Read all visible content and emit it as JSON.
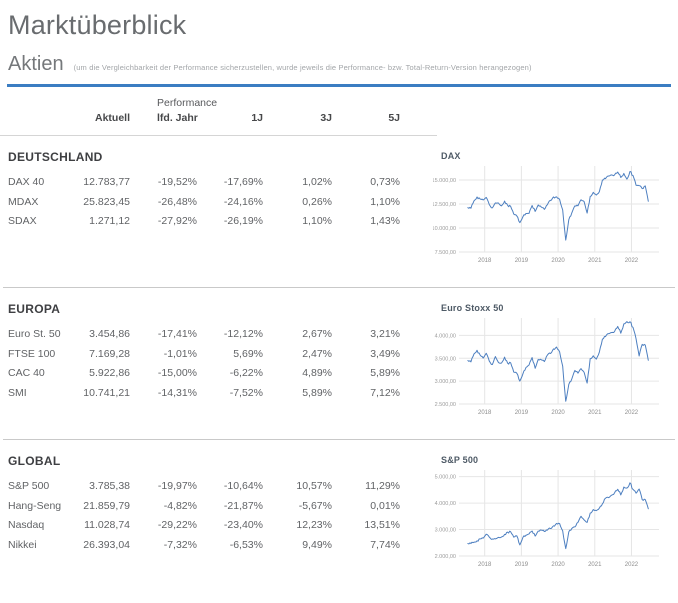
{
  "page": {
    "title": "Marktüberblick",
    "section_title": "Aktien",
    "section_note": "(um die Vergleichbarkeit der Performance sicherzustellen, wurde jeweils die Performance- bzw. Total-Return-Version herangezogen)"
  },
  "colors": {
    "accent_blue": "#3b7dc2",
    "chart_line": "#4d7fc0",
    "grid": "#e6e6e6",
    "divider": "#c9c9c9"
  },
  "table": {
    "header": {
      "group_label": "Performance",
      "columns": [
        "Aktuell",
        "lfd. Jahr",
        "1J",
        "3J",
        "5J"
      ]
    },
    "sections": [
      {
        "title": "DEUTSCHLAND",
        "rows": [
          {
            "name": "DAX 40",
            "values": [
              "12.783,77",
              "-19,52%",
              "-17,69%",
              "1,02%",
              "0,73%"
            ]
          },
          {
            "name": "MDAX",
            "values": [
              "25.823,45",
              "-26,48%",
              "-24,16%",
              "0,26%",
              "1,10%"
            ]
          },
          {
            "name": "SDAX",
            "values": [
              "1.271,12",
              "-27,92%",
              "-26,19%",
              "1,10%",
              "1,43%"
            ]
          }
        ]
      },
      {
        "title": "EUROPA",
        "rows": [
          {
            "name": "Euro St. 50",
            "values": [
              "3.454,86",
              "-17,41%",
              "-12,12%",
              "2,67%",
              "3,21%"
            ]
          },
          {
            "name": "FTSE 100",
            "values": [
              "7.169,28",
              "-1,01%",
              "5,69%",
              "2,47%",
              "3,49%"
            ]
          },
          {
            "name": "CAC 40",
            "values": [
              "5.922,86",
              "-15,00%",
              "-6,22%",
              "4,89%",
              "5,89%"
            ]
          },
          {
            "name": "SMI",
            "values": [
              "10.741,21",
              "-14,31%",
              "-7,52%",
              "5,89%",
              "7,12%"
            ]
          }
        ]
      },
      {
        "title": "GLOBAL",
        "rows": [
          {
            "name": "S&P 500",
            "values": [
              "3.785,38",
              "-19,97%",
              "-10,64%",
              "10,57%",
              "11,29%"
            ]
          },
          {
            "name": "Hang-Seng",
            "values": [
              "21.859,79",
              "-4,82%",
              "-21,87%",
              "-5,67%",
              "0,01%"
            ]
          },
          {
            "name": "Nasdaq",
            "values": [
              "11.028,74",
              "-29,22%",
              "-23,40%",
              "12,23%",
              "13,51%"
            ]
          },
          {
            "name": "Nikkei",
            "values": [
              "26.393,04",
              "-7,32%",
              "-6,53%",
              "9,49%",
              "7,74%"
            ]
          }
        ]
      }
    ]
  },
  "chart_data": [
    {
      "type": "line",
      "title": "DAX",
      "xlabel": "",
      "ylabel": "",
      "legend": "none",
      "grid": true,
      "x_start": 2017.542,
      "x_step": 0.08333,
      "xlim": [
        2017.3,
        2022.75
      ],
      "ylim": [
        7500,
        16460
      ],
      "x_ticks": [
        {
          "value": 2018,
          "label": "2018"
        },
        {
          "value": 2019,
          "label": "2019"
        },
        {
          "value": 2020,
          "label": "2020"
        },
        {
          "value": 2021,
          "label": "2021"
        },
        {
          "value": 2022,
          "label": "2022"
        }
      ],
      "y_ticks": [
        {
          "value": 15000,
          "label": "15.000,00"
        },
        {
          "value": 12500,
          "label": "12.500,00"
        },
        {
          "value": 10000,
          "label": "10.000,00"
        },
        {
          "value": 7500,
          "label": "7.500,00"
        }
      ],
      "values": [
        12118,
        12056,
        12829,
        13230,
        13024,
        12918,
        13189,
        12436,
        12097,
        12612,
        12604,
        12306,
        12806,
        12364,
        12247,
        11448,
        11257,
        10559,
        11173,
        11516,
        11526,
        12344,
        11727,
        12399,
        12189,
        11939,
        12428,
        12867,
        13236,
        13249,
        12982,
        11890,
        8742,
        10862,
        11587,
        12311,
        12313,
        12945,
        12761,
        11556,
        13291,
        13719,
        13432,
        13786,
        15008,
        15136,
        15421,
        15531,
        15544,
        15835,
        15261,
        15689,
        15100,
        15885,
        15471,
        14461,
        14415,
        14098,
        14388,
        12784
      ],
      "line_color": "#4d7fc0"
    },
    {
      "type": "line",
      "title": "Euro Stoxx 50",
      "xlabel": "",
      "ylabel": "",
      "legend": "none",
      "grid": true,
      "x_start": 2017.542,
      "x_step": 0.08333,
      "xlim": [
        2017.3,
        2022.75
      ],
      "ylim": [
        2500,
        4380
      ],
      "x_ticks": [
        {
          "value": 2018,
          "label": "2018"
        },
        {
          "value": 2019,
          "label": "2019"
        },
        {
          "value": 2020,
          "label": "2020"
        },
        {
          "value": 2021,
          "label": "2021"
        },
        {
          "value": 2022,
          "label": "2022"
        }
      ],
      "y_ticks": [
        {
          "value": 4000,
          "label": "4.000,00"
        },
        {
          "value": 3500,
          "label": "3.500,00"
        },
        {
          "value": 3000,
          "label": "3.000,00"
        },
        {
          "value": 2500,
          "label": "2.500,00"
        }
      ],
      "values": [
        3450,
        3421,
        3595,
        3674,
        3570,
        3504,
        3609,
        3439,
        3362,
        3537,
        3407,
        3396,
        3525,
        3393,
        3399,
        3198,
        3173,
        3001,
        3159,
        3298,
        3352,
        3515,
        3280,
        3474,
        3467,
        3427,
        3569,
        3604,
        3704,
        3745,
        3641,
        3329,
        2560,
        2927,
        3050,
        3234,
        3174,
        3273,
        3194,
        2958,
        3493,
        3553,
        3481,
        3636,
        3919,
        3974,
        4039,
        4064,
        4089,
        4196,
        4048,
        4251,
        4300,
        4298,
        4175,
        3924,
        3550,
        3803,
        3789,
        3455
      ],
      "line_color": "#4d7fc0"
    },
    {
      "type": "line",
      "title": "S&P 500",
      "xlabel": "",
      "ylabel": "",
      "legend": "none",
      "grid": true,
      "x_start": 2017.542,
      "x_step": 0.08333,
      "xlim": [
        2017.3,
        2022.75
      ],
      "ylim": [
        2000,
        5250
      ],
      "x_ticks": [
        {
          "value": 2018,
          "label": "2018"
        },
        {
          "value": 2019,
          "label": "2019"
        },
        {
          "value": 2020,
          "label": "2020"
        },
        {
          "value": 2021,
          "label": "2021"
        },
        {
          "value": 2022,
          "label": "2022"
        }
      ],
      "y_ticks": [
        {
          "value": 5000,
          "label": "5.000,00"
        },
        {
          "value": 4000,
          "label": "4.000,00"
        },
        {
          "value": 3000,
          "label": "3.000,00"
        },
        {
          "value": 2000,
          "label": "2.000,00"
        }
      ],
      "values": [
        2470,
        2472,
        2519,
        2575,
        2648,
        2674,
        2824,
        2714,
        2641,
        2648,
        2705,
        2718,
        2816,
        2902,
        2914,
        2712,
        2760,
        2420,
        2704,
        2784,
        2834,
        2946,
        2752,
        2942,
        2980,
        2926,
        2977,
        3038,
        3141,
        3231,
        3226,
        2954,
        2280,
        2912,
        3044,
        3100,
        3271,
        3500,
        3363,
        3270,
        3622,
        3756,
        3714,
        3811,
        3973,
        4181,
        4204,
        4298,
        4395,
        4523,
        4308,
        4605,
        4567,
        4766,
        4516,
        4374,
        4530,
        4132,
        4132,
        3785
      ],
      "line_color": "#4d7fc0"
    }
  ]
}
